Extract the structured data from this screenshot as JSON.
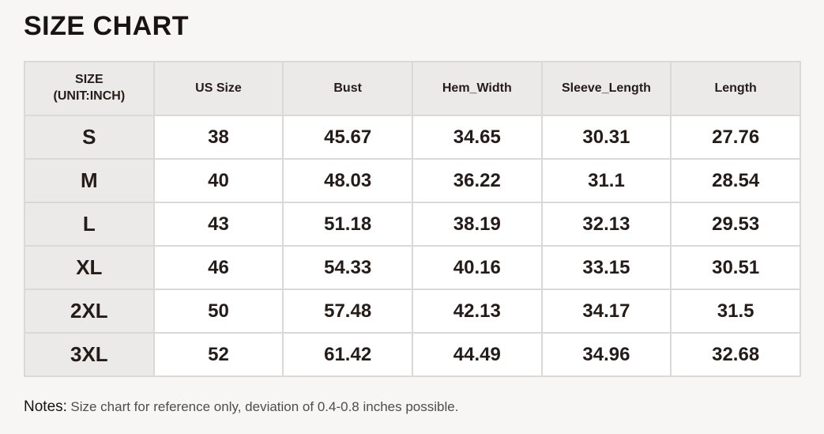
{
  "page": {
    "title": "SIZE CHART"
  },
  "table": {
    "size_header_line1": "SIZE",
    "size_header_line2": "(UNIT:INCH)",
    "columns": [
      "US Size",
      "Bust",
      "Hem_Width",
      "Sleeve_Length",
      "Length"
    ],
    "rows": [
      {
        "size": "S",
        "us_size": "38",
        "bust": "45.67",
        "hem_width": "34.65",
        "sleeve_length": "30.31",
        "length": "27.76"
      },
      {
        "size": "M",
        "us_size": "40",
        "bust": "48.03",
        "hem_width": "36.22",
        "sleeve_length": "31.1",
        "length": "28.54"
      },
      {
        "size": "L",
        "us_size": "43",
        "bust": "51.18",
        "hem_width": "38.19",
        "sleeve_length": "32.13",
        "length": "29.53"
      },
      {
        "size": "XL",
        "us_size": "46",
        "bust": "54.33",
        "hem_width": "40.16",
        "sleeve_length": "33.15",
        "length": "30.51"
      },
      {
        "size": "2XL",
        "us_size": "50",
        "bust": "57.48",
        "hem_width": "42.13",
        "sleeve_length": "34.17",
        "length": "31.5"
      },
      {
        "size": "3XL",
        "us_size": "52",
        "bust": "61.42",
        "hem_width": "44.49",
        "sleeve_length": "34.96",
        "length": "32.68"
      }
    ]
  },
  "notes": {
    "label": "Notes:",
    "text": "Size chart for reference only, deviation of 0.4-0.8 inches possible."
  },
  "colors": {
    "page_background": "#f7f6f5",
    "cell_header_background": "#eceae8",
    "cell_body_background": "#ffffff",
    "grid_line": "#dbd9d7",
    "text_dark": "#251c19",
    "notes_gray": "#4f4d4b"
  }
}
